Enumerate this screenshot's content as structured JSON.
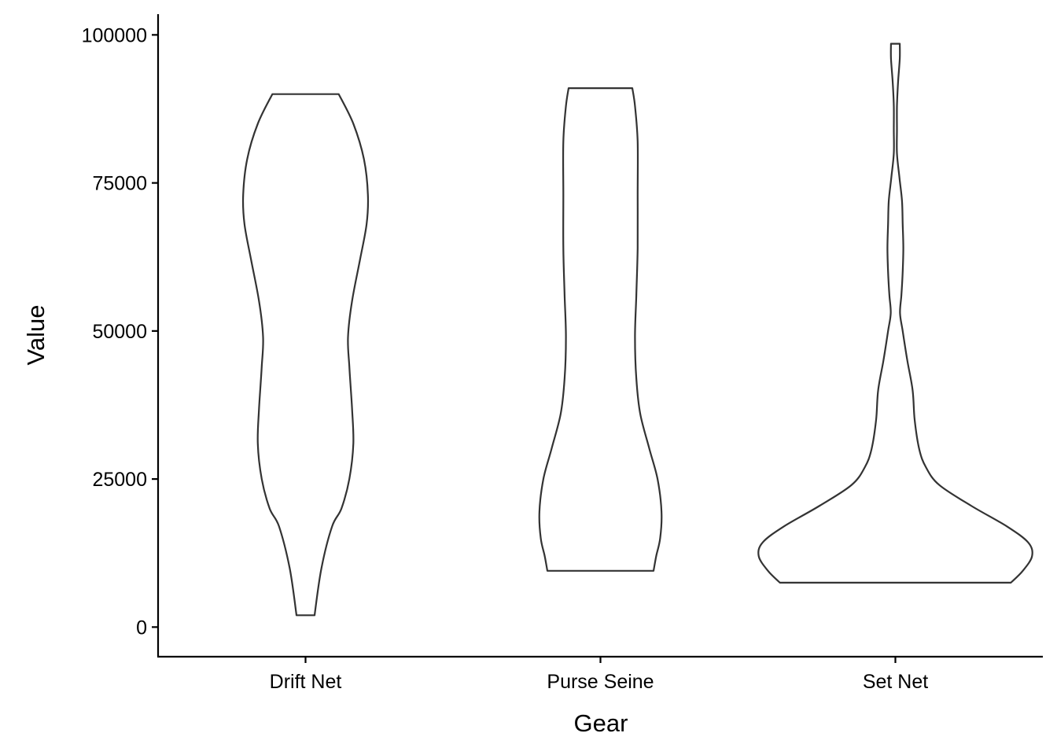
{
  "chart_data": {
    "type": "violin",
    "xlabel": "Gear",
    "ylabel": "Value",
    "ylim": [
      -5000,
      103500
    ],
    "yticks": [
      0,
      25000,
      50000,
      75000,
      100000
    ],
    "ytick_labels": [
      "0",
      "25000",
      "50000",
      "75000",
      "100000"
    ],
    "grid": false,
    "legend": "none",
    "categories": [
      "Drift Net",
      "Purse Seine",
      "Set Net"
    ],
    "violins": [
      {
        "category": "Drift Net",
        "min": 2000,
        "max": 90000,
        "density": [
          [
            2000,
            0.068
          ],
          [
            10000,
            0.12
          ],
          [
            17000,
            0.2
          ],
          [
            20000,
            0.27
          ],
          [
            25000,
            0.33
          ],
          [
            31000,
            0.36
          ],
          [
            37000,
            0.35
          ],
          [
            44000,
            0.33
          ],
          [
            49000,
            0.32
          ],
          [
            55000,
            0.35
          ],
          [
            62000,
            0.41
          ],
          [
            68000,
            0.46
          ],
          [
            73000,
            0.47
          ],
          [
            79000,
            0.44
          ],
          [
            85000,
            0.36
          ],
          [
            90000,
            0.25
          ]
        ]
      },
      {
        "category": "Purse Seine",
        "min": 9500,
        "max": 91000,
        "density": [
          [
            9500,
            0.4
          ],
          [
            12000,
            0.42
          ],
          [
            15000,
            0.45
          ],
          [
            19500,
            0.46
          ],
          [
            25000,
            0.43
          ],
          [
            30000,
            0.37
          ],
          [
            36000,
            0.3
          ],
          [
            42000,
            0.27
          ],
          [
            49000,
            0.26
          ],
          [
            56000,
            0.27
          ],
          [
            64000,
            0.28
          ],
          [
            73000,
            0.28
          ],
          [
            82000,
            0.28
          ],
          [
            88000,
            0.26
          ],
          [
            91000,
            0.24
          ]
        ]
      },
      {
        "category": "Set Net",
        "min": 7500,
        "max": 98500,
        "density": [
          [
            7500,
            0.87
          ],
          [
            9500,
            0.96
          ],
          [
            12000,
            1.03
          ],
          [
            14300,
            1.0
          ],
          [
            17000,
            0.84
          ],
          [
            20500,
            0.57
          ],
          [
            24000,
            0.33
          ],
          [
            27000,
            0.23
          ],
          [
            30000,
            0.18
          ],
          [
            35000,
            0.145
          ],
          [
            40000,
            0.13
          ],
          [
            45000,
            0.09
          ],
          [
            50000,
            0.055
          ],
          [
            53000,
            0.035
          ],
          [
            56000,
            0.045
          ],
          [
            60000,
            0.055
          ],
          [
            64000,
            0.06
          ],
          [
            68000,
            0.055
          ],
          [
            72000,
            0.05
          ],
          [
            76000,
            0.03
          ],
          [
            80000,
            0.012
          ],
          [
            84000,
            0.012
          ],
          [
            88000,
            0.012
          ],
          [
            92000,
            0.02
          ],
          [
            96000,
            0.033
          ],
          [
            98500,
            0.033
          ]
        ]
      }
    ]
  }
}
